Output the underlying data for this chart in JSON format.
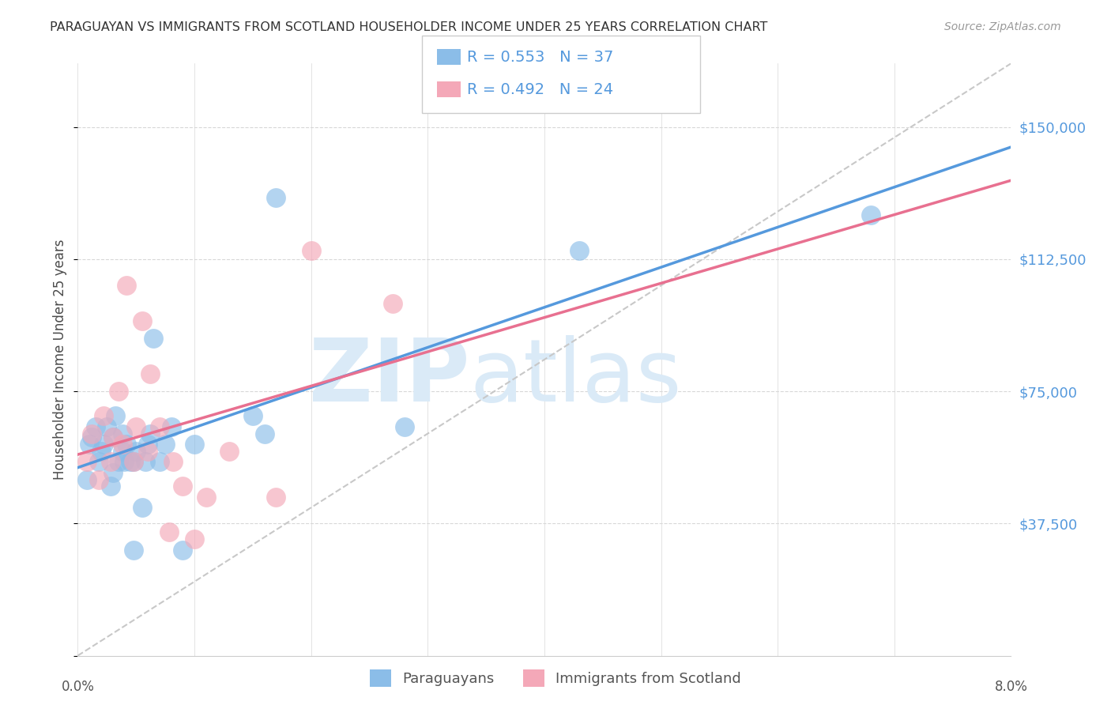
{
  "title": "PARAGUAYAN VS IMMIGRANTS FROM SCOTLAND HOUSEHOLDER INCOME UNDER 25 YEARS CORRELATION CHART",
  "source": "Source: ZipAtlas.com",
  "ylabel": "Householder Income Under 25 years",
  "xmin": 0.0,
  "xmax": 0.08,
  "ymin": 0,
  "ymax": 168000,
  "yticks": [
    0,
    37500,
    75000,
    112500,
    150000
  ],
  "ytick_labels": [
    "",
    "$37,500",
    "$75,000",
    "$112,500",
    "$150,000"
  ],
  "xticks": [
    0.0,
    0.01,
    0.02,
    0.03,
    0.04,
    0.05,
    0.06,
    0.07,
    0.08
  ],
  "legend_r1": "R = 0.553",
  "legend_n1": "N = 37",
  "legend_r2": "R = 0.492",
  "legend_n2": "N = 24",
  "blue_scatter": "#8bbde8",
  "pink_scatter": "#f4a8b8",
  "blue_line": "#5599dd",
  "pink_line": "#e87090",
  "ref_line": "#c8c8c8",
  "title_color": "#333333",
  "source_color": "#999999",
  "axis_label_color": "#4a4a4a",
  "right_tick_color": "#5599dd",
  "watermark_color": "#daeaf7",
  "paraguayan_x": [
    0.0008,
    0.001,
    0.0012,
    0.0015,
    0.0018,
    0.002,
    0.0022,
    0.0025,
    0.0028,
    0.003,
    0.003,
    0.0032,
    0.0035,
    0.0038,
    0.0038,
    0.004,
    0.0042,
    0.0045,
    0.0048,
    0.0048,
    0.005,
    0.0055,
    0.0058,
    0.006,
    0.0062,
    0.0065,
    0.007,
    0.0075,
    0.008,
    0.009,
    0.01,
    0.015,
    0.016,
    0.017,
    0.028,
    0.043,
    0.068
  ],
  "paraguayan_y": [
    50000,
    60000,
    62000,
    65000,
    55000,
    58000,
    60000,
    65000,
    48000,
    52000,
    62000,
    68000,
    55000,
    58000,
    63000,
    55000,
    60000,
    55000,
    30000,
    55000,
    58000,
    42000,
    55000,
    60000,
    63000,
    90000,
    55000,
    60000,
    65000,
    30000,
    60000,
    68000,
    63000,
    130000,
    65000,
    115000,
    125000
  ],
  "scotland_x": [
    0.0008,
    0.0012,
    0.0018,
    0.0022,
    0.0028,
    0.003,
    0.0035,
    0.0038,
    0.0042,
    0.0048,
    0.005,
    0.0055,
    0.006,
    0.0062,
    0.007,
    0.0078,
    0.0082,
    0.009,
    0.01,
    0.011,
    0.013,
    0.017,
    0.02,
    0.027
  ],
  "scotland_y": [
    55000,
    63000,
    50000,
    68000,
    55000,
    62000,
    75000,
    60000,
    105000,
    55000,
    65000,
    95000,
    58000,
    80000,
    65000,
    35000,
    55000,
    48000,
    33000,
    45000,
    58000,
    45000,
    115000,
    100000
  ]
}
